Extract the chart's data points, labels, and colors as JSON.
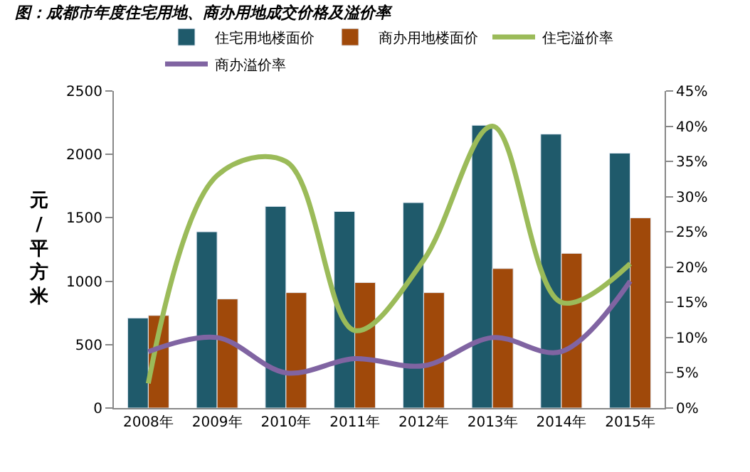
{
  "chart_data": {
    "type": "bar",
    "title": "图：成都市年度住宅用地、商办用地成交价格及溢价率",
    "ylabel": "元/平方米",
    "categories": [
      "2008年",
      "2009年",
      "2010年",
      "2011年",
      "2012年",
      "2013年",
      "2014年",
      "2015年"
    ],
    "series": [
      {
        "name": "住宅用地楼面价",
        "color": "#1f5a6b",
        "values": [
          710,
          1390,
          1590,
          1550,
          1620,
          2230,
          2160,
          2010
        ]
      },
      {
        "name": "商办用地楼面价",
        "color": "#a0490a",
        "values": [
          730,
          860,
          910,
          990,
          910,
          1100,
          1220,
          1500
        ]
      },
      {
        "name": "住宅溢价率",
        "type": "line",
        "axis": "y2",
        "color": "#9bbb59",
        "values": [
          3.5,
          33,
          35,
          11,
          21,
          40,
          15,
          20.5
        ]
      },
      {
        "name": "商办溢价率",
        "type": "line",
        "axis": "y2",
        "color": "#8064a2",
        "values": [
          8,
          10,
          5,
          7,
          6,
          10,
          8,
          18
        ]
      }
    ],
    "ylim": [
      0,
      2500
    ],
    "yticks": [
      0,
      500,
      1000,
      1500,
      2000,
      2500
    ],
    "y2lim": [
      0,
      45
    ],
    "y2ticks": [
      {
        "value": 0,
        "label": "0%"
      },
      {
        "value": 5,
        "label": "5%"
      },
      {
        "value": 10,
        "label": "10%"
      },
      {
        "value": 15,
        "label": "15%"
      },
      {
        "value": 20,
        "label": "20%"
      },
      {
        "value": 25,
        "label": "25%"
      },
      {
        "value": 30,
        "label": "30%"
      },
      {
        "value": 35,
        "label": "35%"
      },
      {
        "value": 40,
        "label": "40%"
      },
      {
        "value": 45,
        "label": "45%"
      }
    ],
    "legend": "top"
  }
}
